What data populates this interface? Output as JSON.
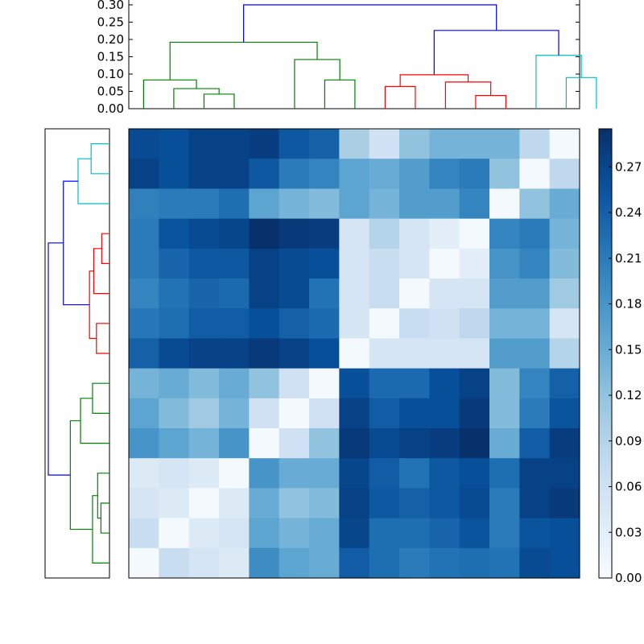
{
  "chart_data": [
    {
      "type": "heatmap",
      "title": "",
      "xlabel": "",
      "ylabel": "",
      "colormap": "Blues",
      "vmin": 0.0,
      "vmax": 0.295,
      "rows": 15,
      "cols": 15,
      "values": [
        [
          0.265,
          0.26,
          0.275,
          0.275,
          0.28,
          0.25,
          0.24,
          0.1,
          0.06,
          0.12,
          0.14,
          0.14,
          0.14,
          0.08,
          0.005
        ],
        [
          0.275,
          0.26,
          0.275,
          0.275,
          0.25,
          0.21,
          0.2,
          0.16,
          0.15,
          0.17,
          0.2,
          0.21,
          0.12,
          0.005,
          0.08
        ],
        [
          0.205,
          0.21,
          0.21,
          0.225,
          0.16,
          0.14,
          0.13,
          0.16,
          0.14,
          0.17,
          0.17,
          0.2,
          0.005,
          0.12,
          0.15
        ],
        [
          0.21,
          0.255,
          0.265,
          0.27,
          0.295,
          0.285,
          0.28,
          0.05,
          0.09,
          0.05,
          0.03,
          0.005,
          0.2,
          0.21,
          0.14
        ],
        [
          0.21,
          0.235,
          0.25,
          0.25,
          0.275,
          0.265,
          0.26,
          0.05,
          0.07,
          0.05,
          0.005,
          0.03,
          0.18,
          0.2,
          0.13
        ],
        [
          0.2,
          0.22,
          0.235,
          0.23,
          0.275,
          0.265,
          0.22,
          0.05,
          0.07,
          0.005,
          0.05,
          0.05,
          0.17,
          0.17,
          0.11
        ],
        [
          0.215,
          0.225,
          0.245,
          0.245,
          0.26,
          0.24,
          0.23,
          0.05,
          0.005,
          0.07,
          0.06,
          0.08,
          0.14,
          0.14,
          0.05
        ],
        [
          0.24,
          0.265,
          0.275,
          0.275,
          0.285,
          0.275,
          0.26,
          0.005,
          0.05,
          0.05,
          0.05,
          0.05,
          0.17,
          0.17,
          0.09
        ],
        [
          0.14,
          0.15,
          0.13,
          0.15,
          0.12,
          0.06,
          0.005,
          0.26,
          0.23,
          0.23,
          0.26,
          0.275,
          0.13,
          0.2,
          0.24
        ],
        [
          0.16,
          0.13,
          0.11,
          0.14,
          0.06,
          0.005,
          0.06,
          0.275,
          0.245,
          0.26,
          0.26,
          0.285,
          0.13,
          0.21,
          0.255
        ],
        [
          0.18,
          0.16,
          0.14,
          0.18,
          0.005,
          0.06,
          0.12,
          0.285,
          0.265,
          0.275,
          0.28,
          0.295,
          0.15,
          0.245,
          0.28
        ],
        [
          0.04,
          0.05,
          0.04,
          0.005,
          0.18,
          0.15,
          0.15,
          0.27,
          0.245,
          0.22,
          0.25,
          0.26,
          0.225,
          0.275,
          0.275
        ],
        [
          0.05,
          0.04,
          0.005,
          0.04,
          0.15,
          0.12,
          0.13,
          0.275,
          0.25,
          0.24,
          0.25,
          0.265,
          0.21,
          0.275,
          0.285
        ],
        [
          0.07,
          0.005,
          0.04,
          0.05,
          0.16,
          0.14,
          0.15,
          0.27,
          0.225,
          0.225,
          0.235,
          0.255,
          0.21,
          0.255,
          0.26
        ],
        [
          0.005,
          0.07,
          0.05,
          0.04,
          0.19,
          0.16,
          0.15,
          0.245,
          0.225,
          0.21,
          0.22,
          0.225,
          0.22,
          0.265,
          0.26
        ]
      ]
    },
    {
      "type": "dendrogram",
      "orientation": "top",
      "yticks": [
        "0.00",
        "0.05",
        "0.10",
        "0.15",
        "0.20",
        "0.25",
        "0.30"
      ],
      "ylim": [
        0.0,
        0.31
      ],
      "n_leaves": 15,
      "links": [
        {
          "x": [
            1.5,
            1.5,
            2.5,
            2.5
          ],
          "y": [
            0,
            0.042,
            0.042,
            0
          ],
          "color": "#008000"
        },
        {
          "x": [
            0.5,
            0.5,
            2.0,
            2.0
          ],
          "y": [
            0,
            0.058,
            0.058,
            0.042
          ],
          "color": "#008000"
        },
        {
          "x": [
            -0.5,
            -0.5,
            1.25,
            1.25
          ],
          "y": [
            0,
            0.083,
            0.083,
            0.058
          ],
          "color": "#008000"
        },
        {
          "x": [
            5.5,
            5.5,
            6.5,
            6.5
          ],
          "y": [
            0,
            0.083,
            0.083,
            0
          ],
          "color": "#008000"
        },
        {
          "x": [
            4.5,
            4.5,
            6.0,
            6.0
          ],
          "y": [
            0,
            0.142,
            0.142,
            0.083
          ],
          "color": "#008000"
        },
        {
          "x": [
            0.375,
            0.375,
            5.25,
            5.25
          ],
          "y": [
            0.083,
            0.192,
            0.192,
            0.142
          ],
          "color": "#008000"
        },
        {
          "x": [
            7.5,
            7.5,
            8.5,
            8.5
          ],
          "y": [
            0,
            0.064,
            0.064,
            0
          ],
          "color": "#ff0000"
        },
        {
          "x": [
            10.5,
            10.5,
            11.5,
            11.5
          ],
          "y": [
            0,
            0.038,
            0.038,
            0
          ],
          "color": "#ff0000"
        },
        {
          "x": [
            9.5,
            9.5,
            11.0,
            11.0
          ],
          "y": [
            0,
            0.077,
            0.077,
            0.038
          ],
          "color": "#ff0000"
        },
        {
          "x": [
            8.0,
            8.0,
            10.25,
            10.25
          ],
          "y": [
            0.064,
            0.098,
            0.098,
            0.077
          ],
          "color": "#ff0000"
        },
        {
          "x": [
            13.5,
            13.5,
            14.5,
            14.5
          ],
          "y": [
            0,
            0.09,
            0.09,
            0
          ],
          "color": "#00bfbf"
        },
        {
          "x": [
            12.5,
            12.5,
            14.0,
            14.0
          ],
          "y": [
            0,
            0.154,
            0.154,
            0.09
          ],
          "color": "#00bfbf"
        },
        {
          "x": [
            9.125,
            9.125,
            13.25,
            13.25
          ],
          "y": [
            0.098,
            0.226,
            0.226,
            0.154
          ],
          "color": "#0000ff"
        },
        {
          "x": [
            2.8125,
            2.8125,
            11.1875,
            11.1875
          ],
          "y": [
            0.192,
            0.3,
            0.3,
            0.226
          ],
          "color": "#0000ff"
        }
      ]
    },
    {
      "type": "dendrogram",
      "orientation": "left",
      "n_leaves": 15,
      "xlim": [
        0.0,
        0.31
      ],
      "links": [
        {
          "y": [
            0.5,
            0.5,
            1.5,
            1.5
          ],
          "x": [
            0,
            0.09,
            0.09,
            0
          ],
          "color": "#00bfbf"
        },
        {
          "y": [
            1.0,
            1.0,
            2.5,
            2.5
          ],
          "x": [
            0.09,
            0.154,
            0.154,
            0
          ],
          "color": "#00bfbf"
        },
        {
          "y": [
            3.5,
            3.5,
            4.5,
            4.5
          ],
          "x": [
            0,
            0.038,
            0.038,
            0
          ],
          "color": "#ff0000"
        },
        {
          "y": [
            4.0,
            4.0,
            5.5,
            5.5
          ],
          "x": [
            0.038,
            0.077,
            0.077,
            0
          ],
          "color": "#ff0000"
        },
        {
          "y": [
            6.5,
            6.5,
            7.5,
            7.5
          ],
          "x": [
            0,
            0.064,
            0.064,
            0
          ],
          "color": "#ff0000"
        },
        {
          "y": [
            4.75,
            4.75,
            7.0,
            7.0
          ],
          "x": [
            0.077,
            0.098,
            0.098,
            0.064
          ],
          "color": "#ff0000"
        },
        {
          "y": [
            1.75,
            1.75,
            5.875,
            5.875
          ],
          "x": [
            0.154,
            0.226,
            0.226,
            0.098
          ],
          "color": "#0000ff"
        },
        {
          "y": [
            8.5,
            8.5,
            9.5,
            9.5
          ],
          "x": [
            0,
            0.083,
            0.083,
            0
          ],
          "color": "#008000"
        },
        {
          "y": [
            9.0,
            9.0,
            10.5,
            10.5
          ],
          "x": [
            0.083,
            0.142,
            0.142,
            0
          ],
          "color": "#008000"
        },
        {
          "y": [
            12.5,
            12.5,
            13.5,
            13.5
          ],
          "x": [
            0,
            0.042,
            0.042,
            0
          ],
          "color": "#008000"
        },
        {
          "y": [
            11.5,
            11.5,
            13.0,
            13.0
          ],
          "x": [
            0,
            0.058,
            0.058,
            0.042
          ],
          "color": "#008000"
        },
        {
          "y": [
            12.25,
            12.25,
            14.5,
            14.5
          ],
          "x": [
            0.058,
            0.083,
            0.083,
            0
          ],
          "color": "#008000"
        },
        {
          "y": [
            9.75,
            9.75,
            13.375,
            13.375
          ],
          "x": [
            0.142,
            0.192,
            0.192,
            0.083
          ],
          "color": "#008000"
        },
        {
          "y": [
            3.8125,
            3.8125,
            11.5625,
            11.5625
          ],
          "x": [
            0.226,
            0.3,
            0.3,
            0.192
          ],
          "color": "#0000ff"
        }
      ]
    },
    {
      "type": "colorbar",
      "ticks": [
        "0.00",
        "0.03",
        "0.06",
        "0.09",
        "0.12",
        "0.15",
        "0.18",
        "0.21",
        "0.24",
        "0.27"
      ],
      "vmin": 0.0,
      "vmax": 0.295
    }
  ]
}
